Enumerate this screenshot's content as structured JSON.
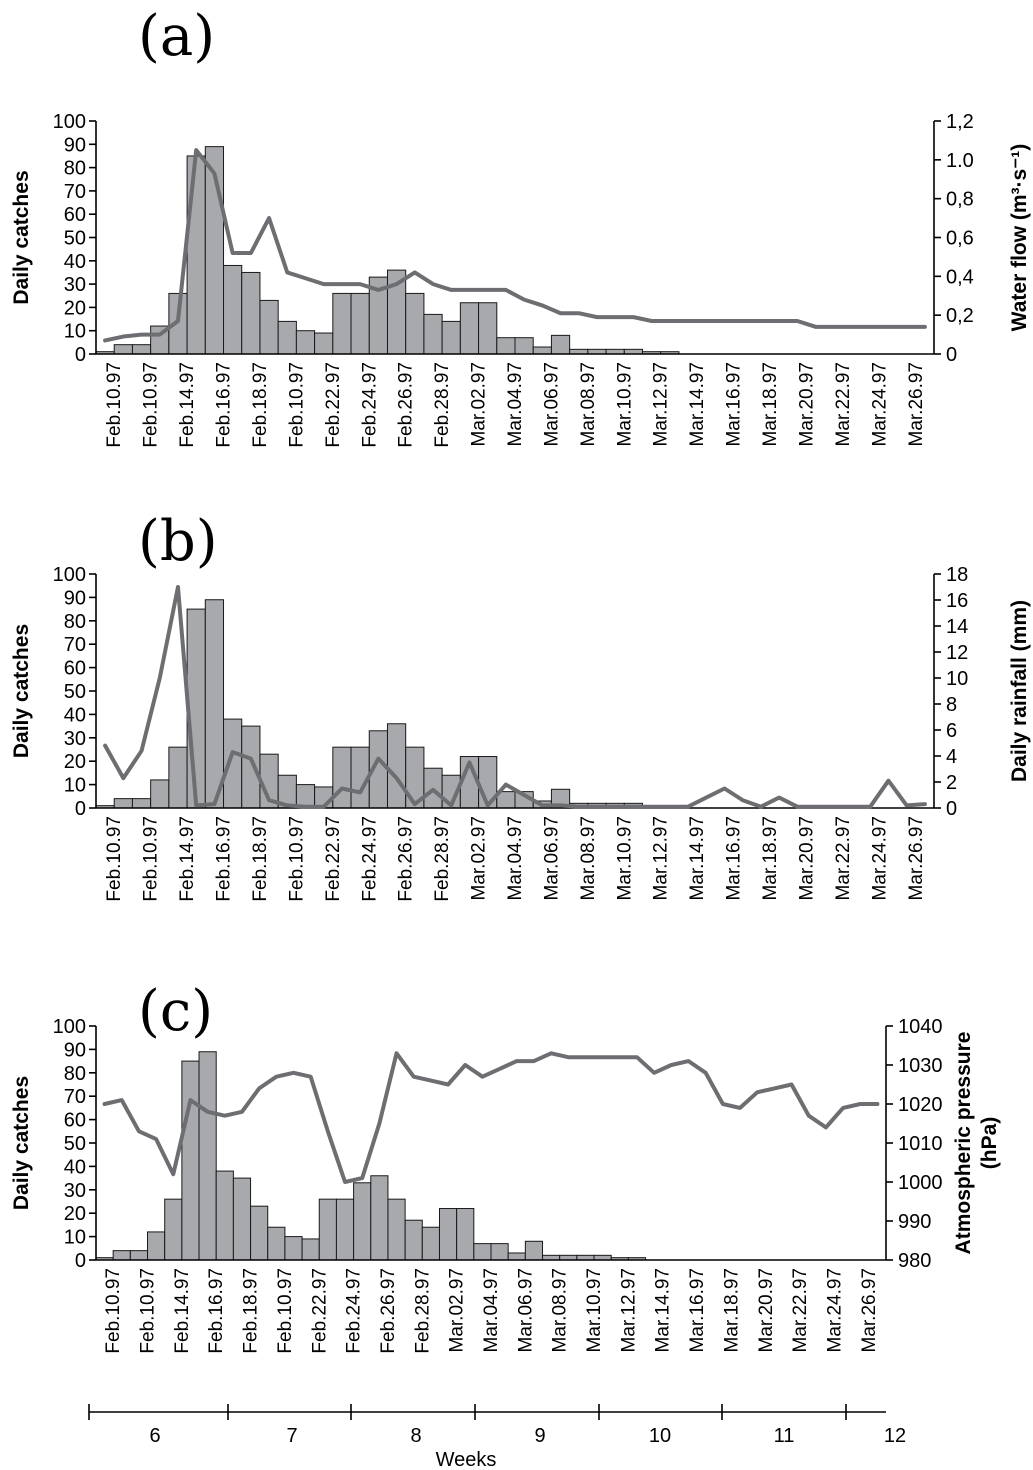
{
  "chart_data": [
    {
      "panel": "(a)",
      "type": "bar+line",
      "categories": [
        "Feb.10.97",
        "Feb.10.97",
        "Feb.14.97",
        "Feb.16.97",
        "Feb.18.97",
        "Feb.10.97",
        "Feb.22.97",
        "Feb.24.97",
        "Feb.26.97",
        "Feb.28.97",
        "Mar.02.97",
        "Mar.04.97",
        "Mar.06.97",
        "Mar.08.97",
        "Mar.10.97",
        "Mar.12.97",
        "Mar.14.97",
        "Mar.16.97",
        "Mar.18.97",
        "Mar.20.97",
        "Mar.22.97",
        "Mar.24.97",
        "Mar.26.97"
      ],
      "ylabel": "Daily catches",
      "ylim": [
        0,
        100
      ],
      "yticks": [
        "0",
        "10",
        "20",
        "30",
        "40",
        "50",
        "60",
        "70",
        "80",
        "90",
        "100"
      ],
      "bars": [
        1,
        4,
        4,
        12,
        26,
        85,
        89,
        38,
        35,
        23,
        14,
        10,
        9,
        26,
        26,
        33,
        36,
        26,
        17,
        14,
        22,
        22,
        7,
        7,
        3,
        8,
        2,
        2,
        2,
        2,
        1,
        1,
        0,
        0,
        0,
        0,
        0,
        0,
        0,
        0,
        0,
        0,
        0,
        0,
        0,
        0
      ],
      "y2label": "Water flow (m³·s⁻¹)",
      "y2lim": [
        0,
        1.2
      ],
      "y2ticks": [
        "0",
        "0,2",
        "0,4",
        "0,6",
        "0,8",
        "1.0",
        "1,2"
      ],
      "line": [
        0.07,
        0.09,
        0.1,
        0.1,
        0.17,
        1.05,
        0.93,
        0.52,
        0.52,
        0.7,
        0.42,
        0.39,
        0.36,
        0.36,
        0.36,
        0.33,
        0.36,
        0.42,
        0.36,
        0.33,
        0.33,
        0.33,
        0.33,
        0.28,
        0.25,
        0.21,
        0.21,
        0.19,
        0.19,
        0.19,
        0.17,
        0.17,
        0.17,
        0.17,
        0.17,
        0.17,
        0.17,
        0.17,
        0.17,
        0.14,
        0.14,
        0.14,
        0.14,
        0.14,
        0.14,
        0.14
      ]
    },
    {
      "panel": "(b)",
      "type": "bar+line",
      "categories": [
        "Feb.10.97",
        "Feb.10.97",
        "Feb.14.97",
        "Feb.16.97",
        "Feb.18.97",
        "Feb.10.97",
        "Feb.22.97",
        "Feb.24.97",
        "Feb.26.97",
        "Feb.28.97",
        "Mar.02.97",
        "Mar.04.97",
        "Mar.06.97",
        "Mar.08.97",
        "Mar.10.97",
        "Mar.12.97",
        "Mar.14.97",
        "Mar.16.97",
        "Mar.18.97",
        "Mar.20.97",
        "Mar.22.97",
        "Mar.24.97",
        "Mar.26.97"
      ],
      "ylabel": "Daily catches",
      "ylim": [
        0,
        100
      ],
      "yticks": [
        "0",
        "10",
        "20",
        "30",
        "40",
        "50",
        "60",
        "70",
        "80",
        "90",
        "100"
      ],
      "bars": [
        1,
        4,
        4,
        12,
        26,
        85,
        89,
        38,
        35,
        23,
        14,
        10,
        9,
        26,
        26,
        33,
        36,
        26,
        17,
        14,
        22,
        22,
        7,
        7,
        3,
        8,
        2,
        2,
        2,
        2,
        1,
        1,
        0,
        0,
        0,
        0,
        0,
        0,
        0,
        0,
        0,
        0,
        0,
        0,
        0,
        0
      ],
      "y2label": "Daily rainfall (mm)",
      "y2lim": [
        0,
        18
      ],
      "y2ticks": [
        "0",
        "2",
        "4",
        "6",
        "8",
        "10",
        "12",
        "14",
        "16",
        "18"
      ],
      "line": [
        4.8,
        2.3,
        4.4,
        10,
        17,
        0.2,
        0.3,
        4.3,
        3.8,
        0.6,
        0.2,
        0.1,
        0.1,
        1.5,
        1.2,
        3.8,
        2.3,
        0.3,
        1.4,
        0.2,
        3.5,
        0.2,
        1.8,
        1.0,
        0.2,
        0.2,
        0.1,
        0.1,
        0.1,
        0.1,
        0.1,
        0.1,
        0.1,
        0.8,
        1.5,
        0.6,
        0.1,
        0.8,
        0.1,
        0.1,
        0.1,
        0.1,
        0.1,
        2.1,
        0.2,
        0.3
      ]
    },
    {
      "panel": "(c)",
      "type": "bar+line",
      "categories": [
        "Feb.10.97",
        "Feb.10.97",
        "Feb.14.97",
        "Feb.16.97",
        "Feb.18.97",
        "Feb.10.97",
        "Feb.22.97",
        "Feb.24.97",
        "Feb.26.97",
        "Feb.28.97",
        "Mar.02.97",
        "Mar.04.97",
        "Mar.06.97",
        "Mar.08.97",
        "Mar.10.97",
        "Mar.12.97",
        "Mar.14.97",
        "Mar.16.97",
        "Mar.18.97",
        "Mar.20.97",
        "Mar.22.97",
        "Mar.24.97",
        "Mar.26.97"
      ],
      "ylabel": "Daily catches",
      "ylim": [
        0,
        100
      ],
      "yticks": [
        "0",
        "10",
        "20",
        "30",
        "40",
        "50",
        "60",
        "70",
        "80",
        "90",
        "100"
      ],
      "bars": [
        1,
        4,
        4,
        12,
        26,
        85,
        89,
        38,
        35,
        23,
        14,
        10,
        9,
        26,
        26,
        33,
        36,
        26,
        17,
        14,
        22,
        22,
        7,
        7,
        3,
        8,
        2,
        2,
        2,
        2,
        1,
        1,
        0,
        0,
        0,
        0,
        0,
        0,
        0,
        0,
        0,
        0,
        0,
        0,
        0,
        0
      ],
      "y2label": "Atmospheric pressure (hPa)",
      "y2lim": [
        980,
        1040
      ],
      "y2ticks": [
        "980",
        "990",
        "1000",
        "1010",
        "1020",
        "1030",
        "1040"
      ],
      "line": [
        1020,
        1021,
        1013,
        1011,
        1002,
        1021,
        1018,
        1017,
        1018,
        1024,
        1027,
        1028,
        1027,
        1013,
        1000,
        1001,
        1015,
        1033,
        1027,
        1026,
        1025,
        1030,
        1027,
        1029,
        1031,
        1031,
        1033,
        1032,
        1032,
        1032,
        1032,
        1032,
        1028,
        1030,
        1031,
        1028,
        1020,
        1019,
        1023,
        1024,
        1025,
        1017,
        1014,
        1019,
        1020,
        1020
      ],
      "weeks_title": "Weeks",
      "weeks": [
        "6",
        "7",
        "8",
        "9",
        "10",
        "11",
        "12"
      ]
    }
  ]
}
